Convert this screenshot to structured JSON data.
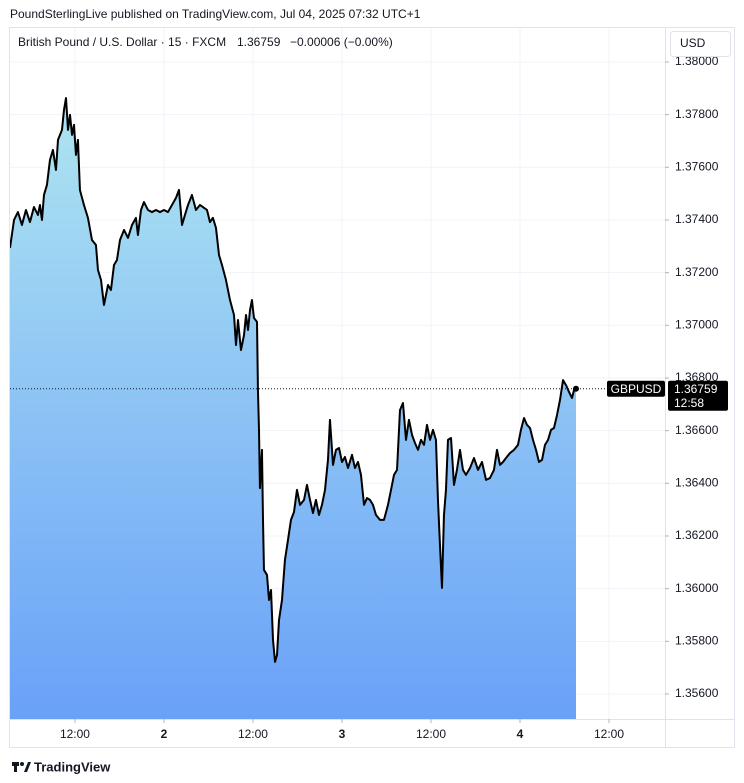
{
  "header": "PoundSterlingLive published on TradingView.com, Jul 04, 2025 07:32 UTC+1",
  "currency": "USD",
  "footer": "TradingView",
  "chart_data": {
    "type": "area",
    "legend": {
      "name": "British Pound / U.S. Dollar · 15 · FXCM",
      "price": "1.36759",
      "change": "−0.00006 (−0.00%)"
    },
    "price_tag": {
      "symbol": "GBPUSD",
      "countdown": "12:58"
    },
    "x": [
      3.24,
      3.78,
      4.31,
      4.85,
      5.39,
      5.93,
      6.47,
      7.01,
      7.28,
      7.55,
      7.82,
      8.22,
      8.63,
      9.03,
      9.44,
      9.71,
      10.25,
      10.52,
      10.79,
      11.06,
      11.33,
      11.6,
      11.87,
      12.13,
      12.4,
      12.67,
      13.21,
      13.75,
      14.29,
      14.83,
      15.1,
      15.51,
      15.91,
      16.18,
      16.45,
      16.85,
      17.26,
      17.66,
      18.07,
      18.61,
      19.15,
      19.69,
      20.22,
      20.49,
      20.9,
      21.3,
      21.84,
      22.38,
      22.92,
      23.46,
      24.0,
      24.54,
      25.08,
      25.62,
      26.02,
      26.43,
      26.83,
      27.24,
      27.77,
      28.31,
      28.85,
      29.39,
      29.8,
      30.2,
      30.6,
      31.01,
      31.42,
      31.82,
      32.36,
      32.9,
      33.44,
      33.71,
      33.98,
      34.38,
      34.79,
      35.06,
      35.33,
      35.6,
      35.86,
      36.13,
      36.54,
      36.67,
      36.81,
      36.94,
      37.21,
      37.35,
      37.48,
      37.89,
      38.16,
      38.43,
      38.7,
      38.97,
      39.24,
      39.51,
      39.91,
      40.31,
      40.72,
      41.12,
      41.53,
      41.93,
      42.34,
      42.88,
      43.28,
      43.69,
      44.09,
      44.49,
      44.9,
      45.3,
      45.71,
      46.11,
      46.38,
      46.79,
      47.19,
      47.6,
      48.0,
      48.4,
      48.81,
      49.35,
      49.75,
      50.16,
      50.56,
      50.97,
      51.37,
      51.77,
      52.18,
      52.58,
      53.12,
      53.66,
      54.2,
      54.61,
      55.01,
      55.42,
      55.82,
      56.22,
      56.63,
      57.03,
      57.44,
      57.84,
      58.25,
      58.65,
      59.06,
      59.46,
      59.87,
      60.27,
      60.67,
      60.94,
      61.21,
      61.48,
      61.75,
      62.02,
      62.29,
      62.7,
      63.1,
      63.5,
      63.91,
      64.31,
      64.72,
      65.26,
      65.8,
      66.34,
      66.88,
      67.42,
      67.95,
      68.49,
      68.9,
      69.3,
      69.71,
      70.11,
      70.65,
      71.19,
      71.73,
      72.13,
      72.54,
      72.94,
      73.35,
      73.75,
      74.16,
      74.56,
      74.97,
      75.37,
      75.78,
      76.18,
      76.58,
      76.99,
      77.39,
      77.8,
      78.2,
      78.61,
      79.01,
      79.28,
      79.55
    ],
    "series": [
      {
        "color": "#000000",
        "values": [
          1.37294,
          1.374,
          1.3743,
          1.37381,
          1.37438,
          1.37392,
          1.37449,
          1.37419,
          1.37457,
          1.374,
          1.37495,
          1.37533,
          1.37628,
          1.37666,
          1.3759,
          1.37704,
          1.37742,
          1.37818,
          1.37863,
          1.37742,
          1.37799,
          1.37723,
          1.37761,
          1.37647,
          1.37704,
          1.37514,
          1.37457,
          1.37408,
          1.37324,
          1.37305,
          1.3721,
          1.37172,
          1.37077,
          1.37115,
          1.37153,
          1.37134,
          1.37229,
          1.37248,
          1.37324,
          1.37362,
          1.37332,
          1.37381,
          1.37408,
          1.37343,
          1.37438,
          1.37468,
          1.37438,
          1.3743,
          1.37438,
          1.3743,
          1.37438,
          1.3743,
          1.37457,
          1.37484,
          1.37514,
          1.37381,
          1.37419,
          1.37457,
          1.37495,
          1.37438,
          1.37457,
          1.37446,
          1.37438,
          1.37392,
          1.37408,
          1.3737,
          1.37267,
          1.37229,
          1.37172,
          1.37096,
          1.37039,
          1.36925,
          1.3702,
          1.36906,
          1.36963,
          1.37039,
          1.36982,
          1.37058,
          1.37096,
          1.37028,
          1.37013,
          1.36754,
          1.36603,
          1.36382,
          1.36527,
          1.36261,
          1.36071,
          1.36052,
          1.35957,
          1.35995,
          1.35805,
          1.35722,
          1.35748,
          1.35881,
          1.35957,
          1.36109,
          1.36185,
          1.36261,
          1.36291,
          1.36375,
          1.36318,
          1.36337,
          1.36394,
          1.36337,
          1.36287,
          1.36337,
          1.3628,
          1.36318,
          1.36375,
          1.36489,
          1.36641,
          1.3647,
          1.36527,
          1.36534,
          1.36481,
          1.365,
          1.36458,
          1.36508,
          1.36458,
          1.36481,
          1.36432,
          1.36318,
          1.36344,
          1.36337,
          1.36318,
          1.3628,
          1.36261,
          1.36261,
          1.36318,
          1.36375,
          1.36432,
          1.36451,
          1.36678,
          1.36705,
          1.36565,
          1.36641,
          1.36584,
          1.36553,
          1.36527,
          1.36565,
          1.36546,
          1.36622,
          1.36565,
          1.36603,
          1.36565,
          1.36337,
          1.36166,
          1.36003,
          1.3628,
          1.36375,
          1.36565,
          1.36572,
          1.36394,
          1.36451,
          1.36527,
          1.36451,
          1.36432,
          1.36458,
          1.36496,
          1.36451,
          1.36481,
          1.36413,
          1.3642,
          1.36451,
          1.36527,
          1.3647,
          1.36481,
          1.36496,
          1.36515,
          1.36527,
          1.36546,
          1.36603,
          1.36648,
          1.36622,
          1.3661,
          1.36565,
          1.36527,
          1.36481,
          1.36489,
          1.36546,
          1.36565,
          1.36603,
          1.3661,
          1.36659,
          1.36716,
          1.36792,
          1.36773,
          1.36747,
          1.36724,
          1.36754,
          1.36759
        ]
      }
    ],
    "xlim": [
      3.24,
      91.55
    ],
    "xticks": [
      {
        "value": 12,
        "label": "12:00"
      },
      {
        "value": 24,
        "label": "2"
      },
      {
        "value": 36,
        "label": "12:00"
      },
      {
        "value": 48,
        "label": "3"
      },
      {
        "value": 60,
        "label": "12:00"
      },
      {
        "value": 72,
        "label": "4"
      },
      {
        "value": 84,
        "label": "12:00"
      }
    ],
    "ylim": [
      1.35505,
      1.38129
    ],
    "yticks": [
      {
        "value": 1.356,
        "label": "1.35600"
      },
      {
        "value": 1.358,
        "label": "1.35800"
      },
      {
        "value": 1.36,
        "label": "1.36000"
      },
      {
        "value": 1.362,
        "label": "1.36200"
      },
      {
        "value": 1.364,
        "label": "1.36400"
      },
      {
        "value": 1.366,
        "label": "1.36600"
      },
      {
        "value": 1.368,
        "label": "1.36800"
      },
      {
        "value": 1.37,
        "label": "1.37000"
      },
      {
        "value": 1.372,
        "label": "1.37200"
      },
      {
        "value": 1.374,
        "label": "1.37400"
      },
      {
        "value": 1.376,
        "label": "1.37600"
      },
      {
        "value": 1.378,
        "label": "1.37800"
      },
      {
        "value": 1.38,
        "label": "1.38000"
      }
    ],
    "grid": true
  }
}
